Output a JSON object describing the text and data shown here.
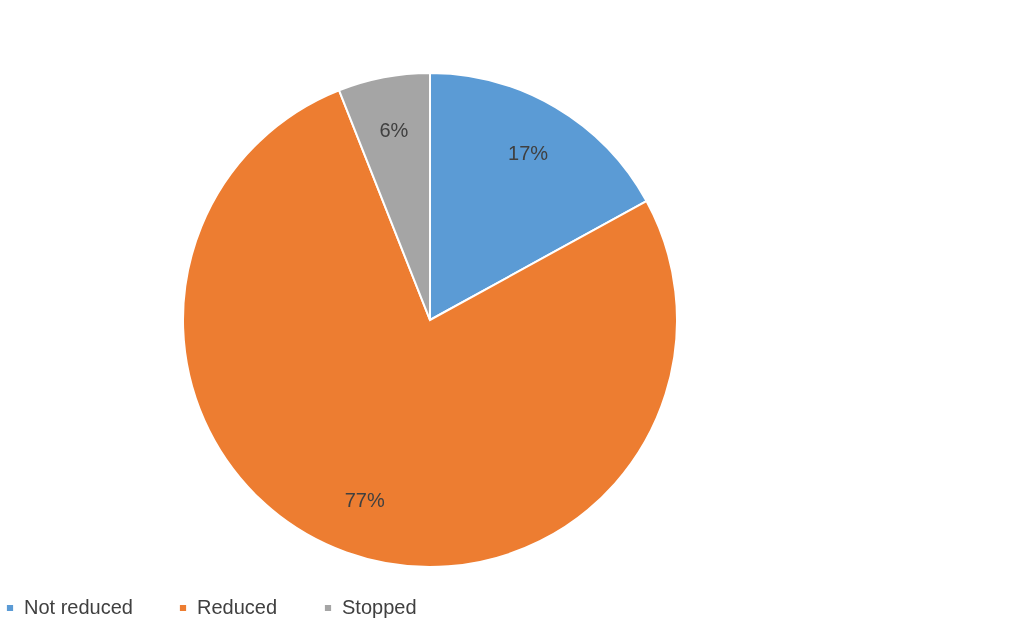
{
  "chart_data": {
    "type": "pie",
    "categories": [
      "Not reduced",
      "Reduced",
      "Stopped"
    ],
    "values": [
      17,
      77,
      6
    ],
    "colors": [
      "#5b9bd5",
      "#ed7d31",
      "#a5a5a5"
    ],
    "value_labels": [
      "17%",
      "77%",
      "6%"
    ],
    "legend": "bottom"
  }
}
